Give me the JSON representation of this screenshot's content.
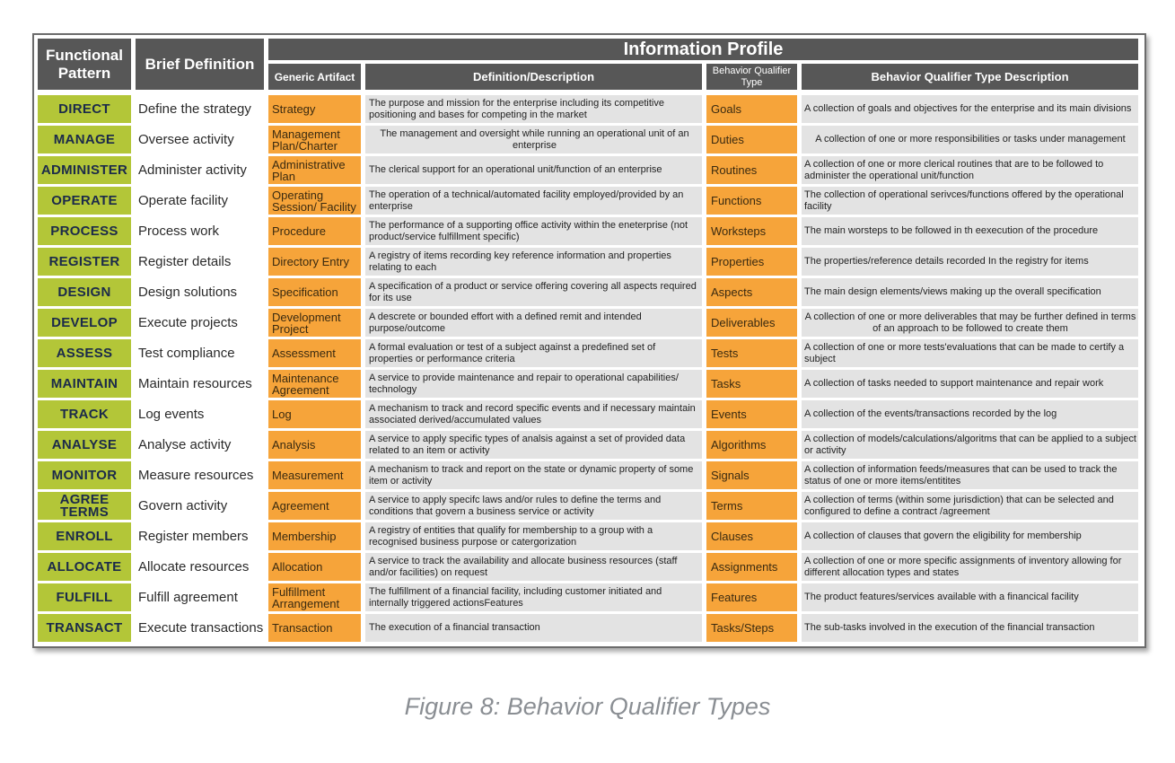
{
  "headers": {
    "functional_pattern": "Functional Pattern",
    "brief_definition": "Brief Definition",
    "information_profile": "Information Profile",
    "generic_artifact": "Generic Artifact",
    "definition_description": "Definition/Description",
    "behavior_qualifier_type": "Behavior Qualifier Type",
    "behavior_qualifier_type_description": "Behavior Qualifier Type Description"
  },
  "rows": [
    {
      "pattern": "DIRECT",
      "brief": "Define the strategy",
      "artifact": "Strategy",
      "definition": "The purpose and mission for the enterprise including its competitive positioning and bases for competing in the market",
      "qualifier": "Goals",
      "qualifier_desc": "A collection of goals and objectives for the enterprise and its main divisions"
    },
    {
      "pattern": "MANAGE",
      "brief": "Oversee activity",
      "artifact": "Management Plan/Charter",
      "definition": "The management and oversight while running an operational unit of an enterprise",
      "qualifier": "Duties",
      "qualifier_desc": "A collection of one or more responsibilities or tasks under management"
    },
    {
      "pattern": "ADMINISTER",
      "brief": "Administer activity",
      "artifact": "Administrative Plan",
      "definition": "The clerical support for an operational unit/function of an enterprise",
      "qualifier": "Routines",
      "qualifier_desc": "A collection of one or more clerical routines that are to be followed to administer the operational unit/function"
    },
    {
      "pattern": "OPERATE",
      "brief": "Operate facility",
      "artifact": "Operating Session/ Facility",
      "definition": "The operation of a technical/automated facility employed/provided by an enterprise",
      "qualifier": "Functions",
      "qualifier_desc": "The collection of operational serivces/functions offered by the operational facility"
    },
    {
      "pattern": "PROCESS",
      "brief": "Process work",
      "artifact": "Procedure",
      "definition": "The performance of a supporting office activity within the eneterprise (not product/service fulfillment specific)",
      "qualifier": "Worksteps",
      "qualifier_desc": "The main worsteps to be followed in th eexecution of the procedure"
    },
    {
      "pattern": "REGISTER",
      "brief": "Register details",
      "artifact": "Directory Entry",
      "definition": "A registry of items recording key reference information and properties relating to each",
      "qualifier": "Properties",
      "qualifier_desc": "The properties/reference details recorded In the registry for items"
    },
    {
      "pattern": "DESIGN",
      "brief": "Design solutions",
      "artifact": "Specification",
      "definition": "A specification of a product or service offering covering all aspects required for its use",
      "qualifier": "Aspects",
      "qualifier_desc": "The main design elements/views making up the overall specification"
    },
    {
      "pattern": "DEVELOP",
      "brief": "Execute projects",
      "artifact": "Development Project",
      "definition": "A descrete or bounded effort with a defined remit and intended purpose/outcome",
      "qualifier": "Deliverables",
      "qualifier_desc": "A collection of one or more deliverables that may be further defined in terms of an approach to be followed to create them"
    },
    {
      "pattern": "ASSESS",
      "brief": "Test compliance",
      "artifact": "Assessment",
      "definition": "A formal evaluation or test of a subject against a predefined set of properties or performance criteria",
      "qualifier": "Tests",
      "qualifier_desc": "A collection of one or more tests'evaluations that can be made to certify a subject"
    },
    {
      "pattern": "MAINTAIN",
      "brief": "Maintain resources",
      "artifact": "Maintenance Agreement",
      "definition": "A service to provide maintenance and repair to operational capabilities/ technology",
      "qualifier": "Tasks",
      "qualifier_desc": "A collection of tasks needed to support maintenance and repair work"
    },
    {
      "pattern": "TRACK",
      "brief": "Log events",
      "artifact": "Log",
      "definition": "A mechanism to track and record specific events and if necessary maintain associated derived/accumulated values",
      "qualifier": "Events",
      "qualifier_desc": "A collection of the events/transactions recorded by the log"
    },
    {
      "pattern": "ANALYSE",
      "brief": "Analyse activity",
      "artifact": "Analysis",
      "definition": "A service to apply specific types of analsis against a set of provided data related to an  item or activity",
      "qualifier": "Algorithms",
      "qualifier_desc": "A collection of models/calculations/algoritms that can be applied to a subject or activity"
    },
    {
      "pattern": "MONITOR",
      "brief": "Measure resources",
      "artifact": "Measurement",
      "definition": "A mechanism to track and report on the state or dynamic property of some item or activity",
      "qualifier": "Signals",
      "qualifier_desc": "A collection of information feeds/measures that can be used to track the status of one or more items/entitites"
    },
    {
      "pattern": "AGREE TERMS",
      "brief": "Govern activity",
      "artifact": "Agreement",
      "definition": "A service to apply specifc laws and/or rules to define the terms and conditions that govern a business service or activity",
      "qualifier": "Terms",
      "qualifier_desc": "A collection of terms (within some jurisdiction) that can be selected and configured to define a contract /agreement"
    },
    {
      "pattern": "ENROLL",
      "brief": "Register members",
      "artifact": "Membership",
      "definition": "A registry of entities that qualify for membership to a group with a recognised business purpose or catergorization",
      "qualifier": "Clauses",
      "qualifier_desc": "A collection of clauses that govern the eligibility for membership"
    },
    {
      "pattern": "ALLOCATE",
      "brief": "Allocate resources",
      "artifact": "Allocation",
      "definition": "A service to track the availability and allocate business resources (staff and/or facilities) on request",
      "qualifier": "Assignments",
      "qualifier_desc": "A collection of one or more specific assignments of inventory allowing for different allocation types and states"
    },
    {
      "pattern": "FULFILL",
      "brief": "Fulfill agreement",
      "artifact": "Fulfillment Arrangement",
      "definition": "The fulfillment of a financial facility, including customer initiated and internally triggered actionsFeatures",
      "qualifier": "Features",
      "qualifier_desc": "The product features/services available with a financical facility"
    },
    {
      "pattern": "TRANSACT",
      "brief": "Execute transactions",
      "artifact": "Transaction",
      "definition": "The execution of a financial transaction",
      "qualifier": "Tasks/Steps",
      "qualifier_desc": "The sub-tasks involved in the execution of the financial transaction"
    }
  ],
  "caption": "Figure 8: Behavior Qualifier Types"
}
